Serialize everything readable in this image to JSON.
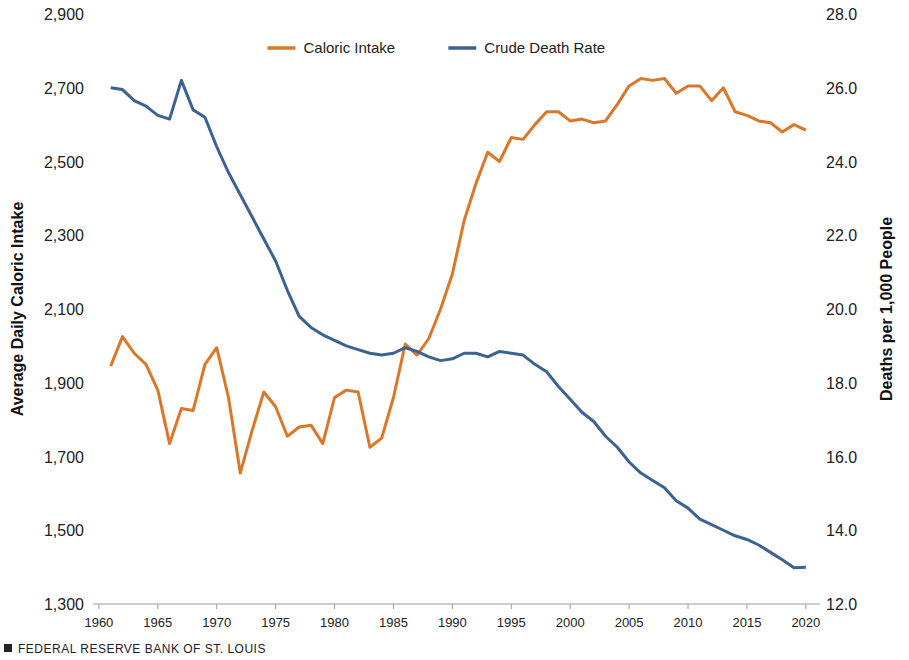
{
  "chart_data": {
    "type": "line",
    "x": [
      1961,
      1962,
      1963,
      1964,
      1965,
      1966,
      1967,
      1968,
      1969,
      1970,
      1971,
      1972,
      1973,
      1974,
      1975,
      1976,
      1977,
      1978,
      1979,
      1980,
      1981,
      1982,
      1983,
      1984,
      1985,
      1986,
      1987,
      1988,
      1989,
      1990,
      1991,
      1992,
      1993,
      1994,
      1995,
      1996,
      1997,
      1998,
      1999,
      2000,
      2001,
      2002,
      2003,
      2004,
      2005,
      2006,
      2007,
      2008,
      2009,
      2010,
      2011,
      2012,
      2013,
      2014,
      2015,
      2016,
      2017,
      2018,
      2019,
      2020
    ],
    "series": [
      {
        "name": "Caloric Intake",
        "color": "#d9772b",
        "axis": "y",
        "values": [
          1945,
          2025,
          1980,
          1950,
          1880,
          1735,
          1830,
          1825,
          1950,
          1995,
          1860,
          1655,
          1770,
          1875,
          1835,
          1755,
          1780,
          1785,
          1735,
          1860,
          1880,
          1875,
          1725,
          1750,
          1860,
          2005,
          1975,
          2020,
          2100,
          2195,
          2340,
          2440,
          2525,
          2500,
          2565,
          2560,
          2600,
          2635,
          2635,
          2610,
          2615,
          2605,
          2610,
          2655,
          2705,
          2725,
          2720,
          2725,
          2685,
          2705,
          2705,
          2665,
          2700,
          2635,
          2625,
          2610,
          2605,
          2580,
          2600,
          2585
        ]
      },
      {
        "name": "Crude Death Rate",
        "color": "#3c6291",
        "axis": "y2",
        "values": [
          26.0,
          25.95,
          25.65,
          25.5,
          25.25,
          25.15,
          26.2,
          25.4,
          25.2,
          24.4,
          23.7,
          23.1,
          22.5,
          21.9,
          21.3,
          20.5,
          19.8,
          19.5,
          19.3,
          19.15,
          19.0,
          18.9,
          18.8,
          18.75,
          18.8,
          18.95,
          18.85,
          18.7,
          18.6,
          18.65,
          18.8,
          18.8,
          18.7,
          18.85,
          18.8,
          18.75,
          18.5,
          18.3,
          17.9,
          17.55,
          17.2,
          16.95,
          16.55,
          16.25,
          15.85,
          15.55,
          15.35,
          15.15,
          14.8,
          14.6,
          14.3,
          14.15,
          14.0,
          13.85,
          13.75,
          13.6,
          13.4,
          13.2,
          12.98,
          13.0
        ]
      }
    ],
    "y_label": "Average Daily Caloric Intake",
    "y2_label": "Deaths per 1,000 People",
    "source": "FEDERAL RESERVE BANK OF ST. LOUIS",
    "xlim": [
      1959.5,
      2021.2
    ],
    "xticks": [
      1960,
      1965,
      1970,
      1975,
      1980,
      1985,
      1990,
      1995,
      2000,
      2005,
      2010,
      2015,
      2020
    ],
    "ylim": [
      1300,
      2900
    ],
    "yticks": [
      {
        "value": 1300,
        "label": "1,300"
      },
      {
        "value": 1500,
        "label": "1,500"
      },
      {
        "value": 1700,
        "label": "1,700"
      },
      {
        "value": 1900,
        "label": "1,900"
      },
      {
        "value": 2100,
        "label": "2,100"
      },
      {
        "value": 2300,
        "label": "2,300"
      },
      {
        "value": 2500,
        "label": "2,500"
      },
      {
        "value": 2700,
        "label": "2,700"
      },
      {
        "value": 2900,
        "label": "2,900"
      }
    ],
    "y2lim": [
      12,
      28
    ],
    "y2ticks": [
      {
        "value": 12,
        "label": "12.0"
      },
      {
        "value": 14,
        "label": "14.0"
      },
      {
        "value": 16,
        "label": "16.0"
      },
      {
        "value": 18,
        "label": "18.0"
      },
      {
        "value": 20,
        "label": "20.0"
      },
      {
        "value": 22,
        "label": "22.0"
      },
      {
        "value": 24,
        "label": "24.0"
      },
      {
        "value": 26,
        "label": "26.0"
      },
      {
        "value": 28,
        "label": "28.0"
      }
    ],
    "grid": false,
    "legend": "top"
  }
}
